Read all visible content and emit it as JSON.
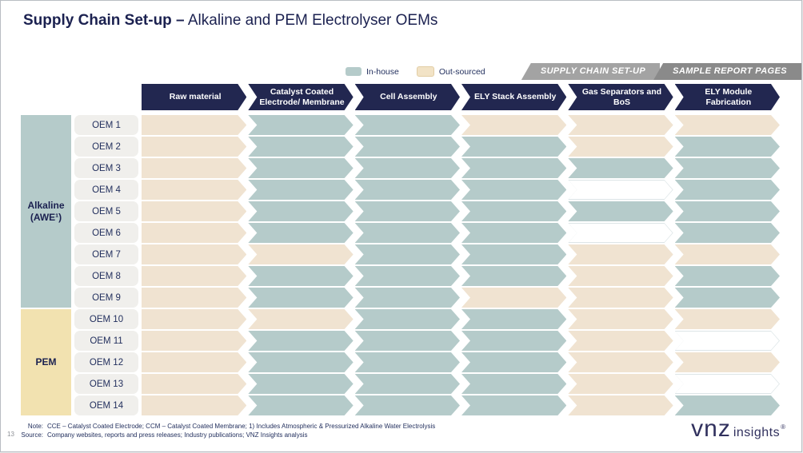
{
  "header": {
    "title_bold": "Supply Chain Set-up –",
    "title_regular": " Alkaline and PEM Electrolyser OEMs"
  },
  "tabs": [
    {
      "id": "supply-chain-set-up",
      "label": "SUPPLY CHAIN SET-UP",
      "bg": "#a3a3a3"
    },
    {
      "id": "sample-report-pages",
      "label": "SAMPLE REPORT PAGES",
      "bg": "#8a8a8a"
    }
  ],
  "legend": {
    "items": [
      {
        "type": "in",
        "label": "In-house",
        "color": "#b5cbca"
      },
      {
        "type": "out",
        "label": "Out-sourced",
        "color": "#f2e3c6"
      }
    ]
  },
  "matrix": {
    "columns": [
      "Raw material",
      "Catalyst Coated Electrode/ Membrane",
      "Cell Assembly",
      "ELY Stack Assembly",
      "Gas Separators and BoS",
      "ELY Module Fabrication"
    ],
    "groups": [
      {
        "id": "alkaline",
        "label": "Alkaline",
        "sublabel": "(AWE¹)",
        "rows": 9,
        "color": "#b5cbca"
      },
      {
        "id": "pem",
        "label": "PEM",
        "sublabel": "",
        "rows": 5,
        "color": "#f2e2b0"
      }
    ],
    "rows": [
      {
        "label": "OEM 1",
        "cells": [
          "out",
          "in",
          "in",
          "out",
          "out",
          "out"
        ]
      },
      {
        "label": "OEM 2",
        "cells": [
          "out",
          "in",
          "in",
          "in",
          "out",
          "in"
        ]
      },
      {
        "label": "OEM 3",
        "cells": [
          "out",
          "in",
          "in",
          "in",
          "in",
          "in"
        ]
      },
      {
        "label": "OEM 4",
        "cells": [
          "out",
          "in",
          "in",
          "in",
          "blank",
          "in"
        ]
      },
      {
        "label": "OEM 5",
        "cells": [
          "out",
          "in",
          "in",
          "in",
          "in",
          "in"
        ]
      },
      {
        "label": "OEM 6",
        "cells": [
          "out",
          "in",
          "in",
          "in",
          "blank",
          "in"
        ]
      },
      {
        "label": "OEM 7",
        "cells": [
          "out",
          "out",
          "in",
          "in",
          "out",
          "out"
        ]
      },
      {
        "label": "OEM 8",
        "cells": [
          "out",
          "in",
          "in",
          "in",
          "out",
          "in"
        ]
      },
      {
        "label": "OEM 9",
        "cells": [
          "out",
          "in",
          "in",
          "out",
          "out",
          "in"
        ]
      },
      {
        "label": "OEM 10",
        "cells": [
          "out",
          "out",
          "in",
          "in",
          "out",
          "out"
        ]
      },
      {
        "label": "OEM 11",
        "cells": [
          "out",
          "in",
          "in",
          "in",
          "out",
          "blank"
        ]
      },
      {
        "label": "OEM 12",
        "cells": [
          "out",
          "in",
          "in",
          "in",
          "out",
          "out"
        ]
      },
      {
        "label": "OEM 13",
        "cells": [
          "out",
          "in",
          "in",
          "in",
          "out",
          "blank"
        ]
      },
      {
        "label": "OEM 14",
        "cells": [
          "out",
          "in",
          "in",
          "in",
          "out",
          "in"
        ]
      }
    ],
    "cell_colors": {
      "in": "#b5cbca",
      "out": "#f0e3d1",
      "blank_border": "#dde5e7"
    },
    "header_color": "#222750"
  },
  "footer": {
    "page_number": "13",
    "note_label": "Note:",
    "note_text": "CCE – Catalyst Coated Electrode; CCM – Catalyst Coated Membrane; 1) Includes Atmospheric & Pressurized Alkaline Water Electrolysis",
    "source_label": "Source:",
    "source_text": "Company websites, reports and press releases; Industry publications; VNZ Insights analysis",
    "logo": {
      "main": "vnz",
      "sub": "insights",
      "mark": "®"
    }
  }
}
